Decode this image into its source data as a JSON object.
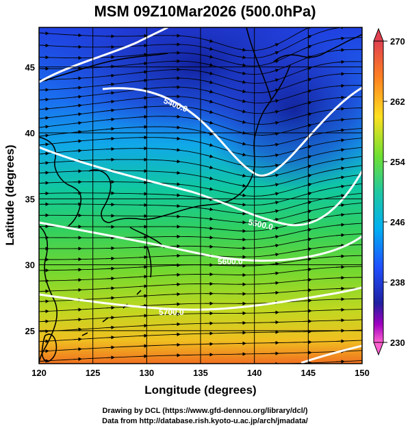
{
  "title": "MSM 09Z10Mar2026 (500.0hPa)",
  "map": {
    "xlabel": "Longitude (degrees)",
    "ylabel": "Latitude  (degrees)",
    "lon_range": [
      120,
      150
    ],
    "lat_range": [
      22.5,
      48
    ],
    "lon_ticks": [
      "120",
      "125",
      "130",
      "135",
      "140",
      "145",
      "150"
    ],
    "lat_ticks": [
      "25",
      "30",
      "35",
      "40",
      "45"
    ],
    "contour_labels": [
      "5400.0",
      "5500.0",
      "5600.0",
      "5700.0"
    ],
    "grid": true
  },
  "colorbar": {
    "labels": [
      "270",
      "262",
      "254",
      "246",
      "238",
      "230"
    ],
    "colors": [
      "#e04050",
      "#ff9020",
      "#ffe020",
      "#40d040",
      "#00c8c8",
      "#2060ff",
      "#2020a0",
      "#a000c0",
      "#ff60d0"
    ]
  },
  "footer": {
    "line1": "Drawing by DCL (https://www.gfd-dennou.org/library/dcl/)",
    "line2": "Data from http://database.rish.kyoto-u.ac.jp/arch/jmadata/"
  }
}
